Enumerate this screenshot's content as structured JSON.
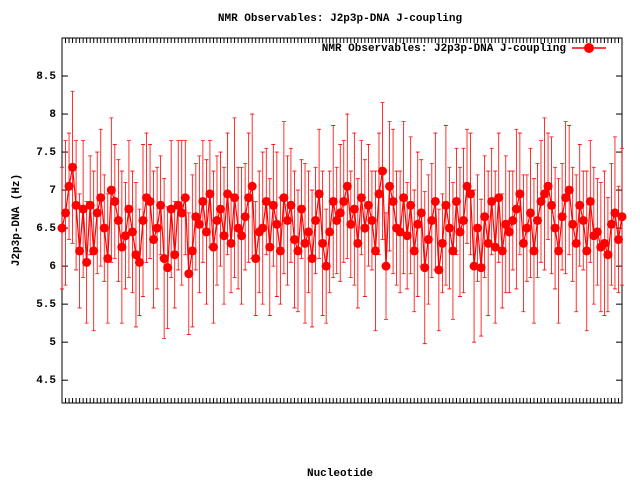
{
  "chart_data": {
    "type": "line",
    "title": "NMR Observables: J2p3p-DNA J-coupling",
    "ylabel": "J2p3p-DNA (Hz)",
    "xlabel": "Nucleotide",
    "legend": "upper right",
    "ylim": [
      4.2,
      9
    ],
    "yticks": [
      4.5,
      5,
      5.5,
      6,
      6.5,
      7,
      7.5,
      8,
      8.5
    ],
    "categories": [
      null,
      null,
      null,
      null,
      null,
      null,
      null,
      null,
      null,
      null,
      null,
      null,
      null,
      null,
      null,
      null,
      null,
      null,
      null,
      null,
      null,
      null,
      null,
      null,
      null,
      null,
      null,
      null,
      null,
      null,
      null,
      null,
      null,
      null,
      null,
      null,
      null,
      null,
      null,
      null,
      null,
      null,
      null,
      null,
      null,
      null,
      null,
      null,
      null,
      null,
      null,
      null,
      null,
      null,
      null,
      null,
      null,
      null,
      null,
      null,
      null,
      null,
      null,
      null,
      null,
      null,
      null,
      null,
      null,
      null,
      null,
      null,
      null,
      null,
      null,
      null,
      null,
      null,
      null,
      null,
      null,
      null,
      null,
      null,
      null,
      null,
      null,
      null,
      null,
      null,
      null,
      null,
      null,
      null,
      null,
      null,
      null,
      null,
      null,
      null,
      null,
      null,
      null,
      null,
      null,
      null,
      null,
      null,
      null,
      null,
      null,
      null,
      null,
      null,
      null,
      null,
      null,
      null,
      null,
      null,
      null,
      null,
      null,
      null,
      null,
      null,
      null,
      null,
      null,
      null,
      null,
      null,
      null,
      null,
      null,
      null,
      null,
      null,
      null,
      null,
      null,
      null,
      null,
      null,
      null,
      null,
      null,
      null,
      null,
      null,
      null,
      null,
      null,
      null,
      null,
      null,
      null,
      null,
      null,
      null
    ],
    "series": [
      {
        "name": "NMR Observables: J2p3p-DNA J-coupling",
        "color": "#ff0000",
        "values": [
          6.5,
          6.7,
          7.05,
          7.3,
          6.8,
          6.2,
          6.75,
          6.05,
          6.8,
          6.2,
          6.7,
          6.9,
          6.5,
          6.1,
          7.0,
          6.85,
          6.6,
          6.25,
          6.4,
          6.75,
          6.45,
          6.15,
          6.05,
          6.6,
          6.9,
          6.85,
          6.35,
          6.5,
          6.8,
          6.1,
          5.98,
          6.75,
          6.15,
          6.8,
          6.7,
          6.9,
          5.9,
          6.2,
          6.65,
          6.55,
          6.85,
          6.45,
          6.95,
          6.25,
          6.6,
          6.75,
          6.4,
          6.95,
          6.3,
          6.9,
          6.5,
          6.4,
          6.65,
          6.9,
          7.05,
          6.1,
          6.45,
          6.5,
          6.85,
          6.25,
          6.8,
          6.55,
          6.2,
          6.9,
          6.6,
          6.8,
          6.35,
          6.2,
          6.75,
          6.3,
          6.45,
          6.1,
          6.6,
          6.95,
          6.3,
          6.0,
          6.45,
          6.85,
          6.6,
          6.7,
          6.85,
          7.05,
          6.55,
          6.75,
          6.3,
          6.9,
          6.5,
          6.8,
          6.6,
          6.2,
          6.95,
          7.25,
          6.0,
          7.05,
          6.85,
          6.5,
          6.45,
          6.9,
          6.4,
          6.8,
          6.2,
          6.55,
          6.7,
          5.98,
          6.35,
          6.6,
          6.85,
          5.95,
          6.3,
          6.8,
          6.5,
          6.2,
          6.85,
          6.45,
          6.6,
          7.05,
          6.95,
          6.0,
          6.5,
          5.98,
          6.65,
          6.3,
          6.85,
          6.25,
          6.9,
          6.2,
          6.55,
          6.45,
          6.6,
          6.75,
          6.95,
          6.3,
          6.5,
          6.7,
          6.2,
          6.6,
          6.85,
          6.95,
          7.05,
          6.8,
          6.5,
          6.2,
          6.65,
          6.9,
          7.0,
          6.55,
          6.3,
          6.8,
          6.6,
          6.2,
          6.85,
          6.4,
          6.45,
          6.25,
          6.3,
          6.15,
          6.55,
          6.7,
          6.35,
          6.65
        ],
        "errors": [
          0.8,
          0.95,
          0.7,
          1.0,
          0.85,
          0.75,
          0.9,
          0.8,
          0.65,
          1.05,
          0.8,
          0.9,
          0.7,
          0.85,
          0.95,
          0.75,
          0.8,
          1.0,
          0.7,
          0.9,
          0.8,
          0.95,
          0.7,
          1.0,
          0.85,
          0.75,
          0.9,
          0.8,
          0.65,
          1.05,
          0.8,
          0.9,
          0.7,
          0.85,
          0.95,
          0.75,
          0.8,
          1.0,
          0.7,
          0.9,
          0.8,
          0.95,
          0.7,
          1.0,
          0.85,
          0.75,
          0.9,
          0.8,
          0.65,
          1.05,
          0.8,
          0.9,
          0.7,
          0.85,
          0.95,
          0.75,
          0.8,
          1.0,
          0.7,
          0.9,
          0.8,
          0.95,
          0.7,
          1.0,
          0.85,
          0.75,
          0.9,
          0.8,
          0.65,
          1.05,
          0.8,
          0.9,
          0.7,
          0.85,
          0.95,
          0.75,
          0.8,
          1.0,
          0.7,
          0.9,
          0.8,
          0.95,
          0.7,
          1.0,
          0.85,
          0.75,
          0.9,
          0.8,
          0.65,
          1.05,
          0.8,
          0.9,
          0.7,
          0.85,
          0.95,
          0.75,
          0.8,
          1.0,
          0.7,
          0.9,
          0.8,
          0.95,
          0.7,
          1.0,
          0.85,
          0.75,
          0.9,
          0.8,
          0.65,
          1.05,
          0.8,
          0.9,
          0.7,
          0.85,
          0.95,
          0.75,
          0.8,
          1.0,
          0.7,
          0.9,
          0.8,
          0.95,
          0.7,
          1.0,
          0.85,
          0.75,
          0.9,
          0.8,
          0.65,
          1.05,
          0.8,
          0.9,
          0.7,
          0.85,
          0.95,
          0.75,
          0.8,
          1.0,
          0.7,
          0.9,
          0.8,
          0.95,
          0.7,
          1.0,
          0.85,
          0.75,
          0.9,
          0.8,
          0.65,
          1.05,
          0.8,
          0.9,
          0.7,
          0.85,
          0.95,
          0.75,
          0.8,
          1.0,
          0.7,
          0.9
        ]
      }
    ]
  }
}
